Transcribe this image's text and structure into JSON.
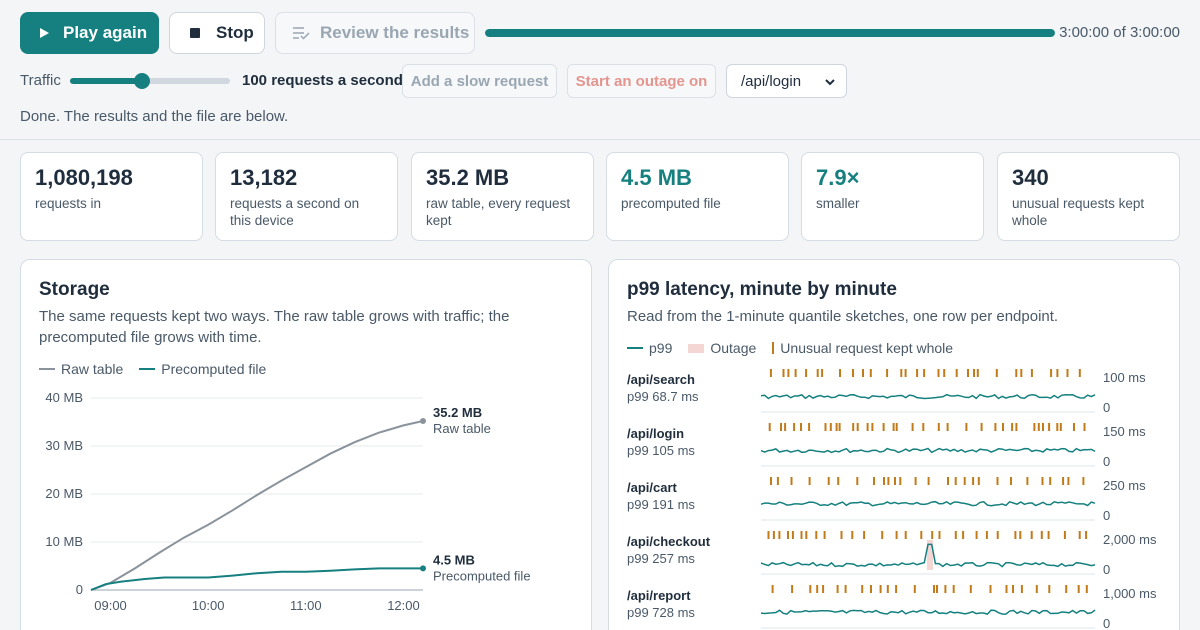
{
  "toolbar": {
    "play_label": "Play again",
    "stop_label": "Stop",
    "review_label": "Review the results",
    "progress_fraction": 1.0,
    "time_text": "3:00:00 of 3:00:00"
  },
  "controls": {
    "traffic_label": "Traffic",
    "traffic_fraction": 0.45,
    "rate_text": "100 requests a second",
    "slow_request_label": "Add a slow request",
    "outage_label": "Start an outage on",
    "endpoint_selected": "/api/login"
  },
  "status_text": "Done. The results and the file are below.",
  "stats": [
    {
      "value": "1,080,198",
      "label": "requests in",
      "accent": false
    },
    {
      "value": "13,182",
      "label": "requests a second on this device",
      "accent": false
    },
    {
      "value": "35.2 MB",
      "label": "raw table, every request kept",
      "accent": false
    },
    {
      "value": "4.5 MB",
      "label": "precomputed file",
      "accent": true
    },
    {
      "value": "7.9×",
      "label": "smaller",
      "accent": true
    },
    {
      "value": "340",
      "label": "unusual requests kept whole",
      "accent": false
    }
  ],
  "colors": {
    "accent": "#15807f",
    "raw_series": "#8a939c",
    "outage_band": "#f4d6d5",
    "unusual_tick": "#c27b1a"
  },
  "storage": {
    "title": "Storage",
    "subtitle": "The same requests kept two ways. The raw table grows with traffic; the precomputed file grows with time.",
    "legend_raw": "Raw table",
    "legend_pre": "Precomputed file",
    "end_label_raw_value": "35.2 MB",
    "end_label_raw_name": "Raw table",
    "end_label_pre_value": "4.5 MB",
    "end_label_pre_name": "Precomputed file"
  },
  "p99": {
    "title": "p99 latency, minute by minute",
    "subtitle": "Read from the 1-minute quantile sketches, one row per endpoint.",
    "legend_p99": "p99",
    "legend_outage": "Outage",
    "legend_unusual": "Unusual request kept whole",
    "rows": [
      {
        "endpoint": "/api/search",
        "p99_text": "p99 68.7 ms",
        "scale_max_label": "100 ms",
        "scale_min_label": "0",
        "scale_max": 100,
        "level": 68.7,
        "spike": null
      },
      {
        "endpoint": "/api/login",
        "p99_text": "p99 105 ms",
        "scale_max_label": "150 ms",
        "scale_min_label": "0",
        "scale_max": 150,
        "level": 105,
        "spike": null
      },
      {
        "endpoint": "/api/cart",
        "p99_text": "p99 191 ms",
        "scale_max_label": "250 ms",
        "scale_min_label": "0",
        "scale_max": 250,
        "level": 191,
        "spike": null
      },
      {
        "endpoint": "/api/checkout",
        "p99_text": "p99 257 ms",
        "scale_max_label": "2,000 ms",
        "scale_min_label": "0",
        "scale_max": 2000,
        "level": 257,
        "spike": {
          "minute": 0.5,
          "value": 1800
        }
      },
      {
        "endpoint": "/api/report",
        "p99_text": "p99 728 ms",
        "scale_max_label": "1,000 ms",
        "scale_min_label": "0",
        "scale_max": 1000,
        "level": 728,
        "spike": null
      }
    ]
  },
  "chart_data": {
    "type": "line",
    "title": "Storage",
    "xlabel": "",
    "ylabel": "",
    "x_ticks": [
      "09:00",
      "10:00",
      "11:00",
      "12:00"
    ],
    "y_ticks": [
      "0",
      "10 MB",
      "20 MB",
      "30 MB",
      "40 MB"
    ],
    "ylim": [
      0,
      40
    ],
    "x_range_hours": [
      8.8,
      12.2
    ],
    "grid": true,
    "legend_position": "top-left",
    "series": [
      {
        "name": "Raw table",
        "x": [
          8.8,
          9.0,
          9.25,
          9.5,
          9.75,
          10.0,
          10.25,
          10.5,
          10.75,
          11.0,
          11.25,
          11.5,
          11.75,
          12.0,
          12.2
        ],
        "y": [
          0,
          1.5,
          4.5,
          7.8,
          10.9,
          13.6,
          16.6,
          19.8,
          22.8,
          25.6,
          28.4,
          30.8,
          32.8,
          34.3,
          35.2
        ]
      },
      {
        "name": "Precomputed file",
        "x": [
          8.8,
          8.95,
          9.1,
          9.35,
          9.55,
          9.75,
          10.0,
          10.25,
          10.5,
          10.75,
          11.0,
          11.25,
          11.5,
          11.75,
          12.0,
          12.2
        ],
        "y": [
          0,
          1.2,
          1.7,
          2.3,
          2.6,
          2.6,
          2.6,
          3.0,
          3.5,
          3.8,
          3.8,
          4.0,
          4.3,
          4.5,
          4.5,
          4.5
        ]
      }
    ]
  }
}
